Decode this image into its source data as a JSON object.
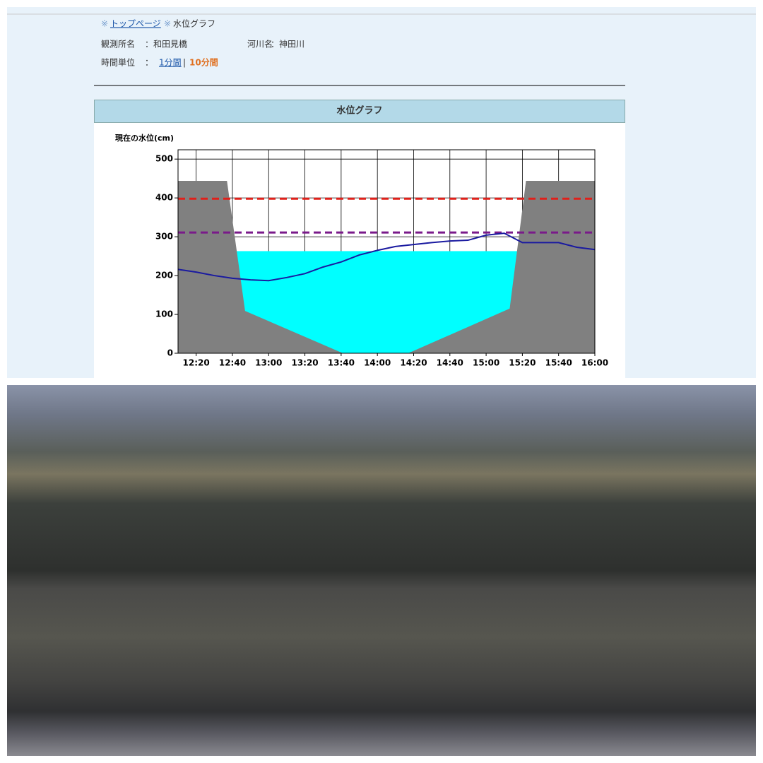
{
  "header": {
    "breadcrumb": {
      "marker": "※",
      "home": "トップページ",
      "current": "水位グラフ"
    },
    "station_label": "観測所名",
    "station": "：和田見橋",
    "river_label": "河川名",
    "river": "：神田川",
    "unit_label": "時間単位",
    "unit_sep": "：",
    "unit_1min": "1分間",
    "unit_divider": "|",
    "unit_10min": "10分間"
  },
  "panel_title": "水位グラフ",
  "chart_data": {
    "type": "line",
    "y_label": "現在の水位(cm)",
    "x": [
      730,
      740,
      750,
      760,
      770,
      780,
      790,
      800,
      810,
      820,
      830,
      840,
      850,
      860,
      870,
      880,
      890,
      900,
      910,
      920,
      930,
      940,
      950,
      960
    ],
    "series": [
      {
        "color": "#1a1aa0",
        "values": [
          216,
          209,
          200,
          193,
          189,
          187,
          195,
          205,
          222,
          235,
          253,
          265,
          275,
          280,
          285,
          289,
          291,
          304,
          309,
          285,
          285,
          285,
          273,
          267
        ]
      }
    ],
    "riverbed": {
      "color": "#808080",
      "x": [
        730,
        757,
        767,
        821,
        857,
        913,
        922,
        960
      ],
      "y": [
        444,
        444,
        109,
        0,
        0,
        115,
        444,
        444
      ]
    },
    "water_level": 263,
    "water_color": "#00ffff",
    "thresholds": [
      {
        "value": 398,
        "color": "#e0201a"
      },
      {
        "value": 311,
        "color": "#7a1a8a"
      }
    ],
    "xlim": [
      730,
      960
    ],
    "ylim": [
      0,
      524
    ],
    "xticks": [
      {
        "value": 740,
        "label": "12:20"
      },
      {
        "value": 760,
        "label": "12:40"
      },
      {
        "value": 780,
        "label": "13:00"
      },
      {
        "value": 800,
        "label": "13:20"
      },
      {
        "value": 820,
        "label": "13:40"
      },
      {
        "value": 840,
        "label": "14:00"
      },
      {
        "value": 860,
        "label": "14:20"
      },
      {
        "value": 880,
        "label": "14:40"
      },
      {
        "value": 900,
        "label": "15:00"
      },
      {
        "value": 920,
        "label": "15:20"
      },
      {
        "value": 940,
        "label": "15:40"
      },
      {
        "value": 960,
        "label": "16:00"
      }
    ],
    "yticks": [
      0,
      100,
      200,
      300,
      400,
      500
    ],
    "grid": true
  }
}
